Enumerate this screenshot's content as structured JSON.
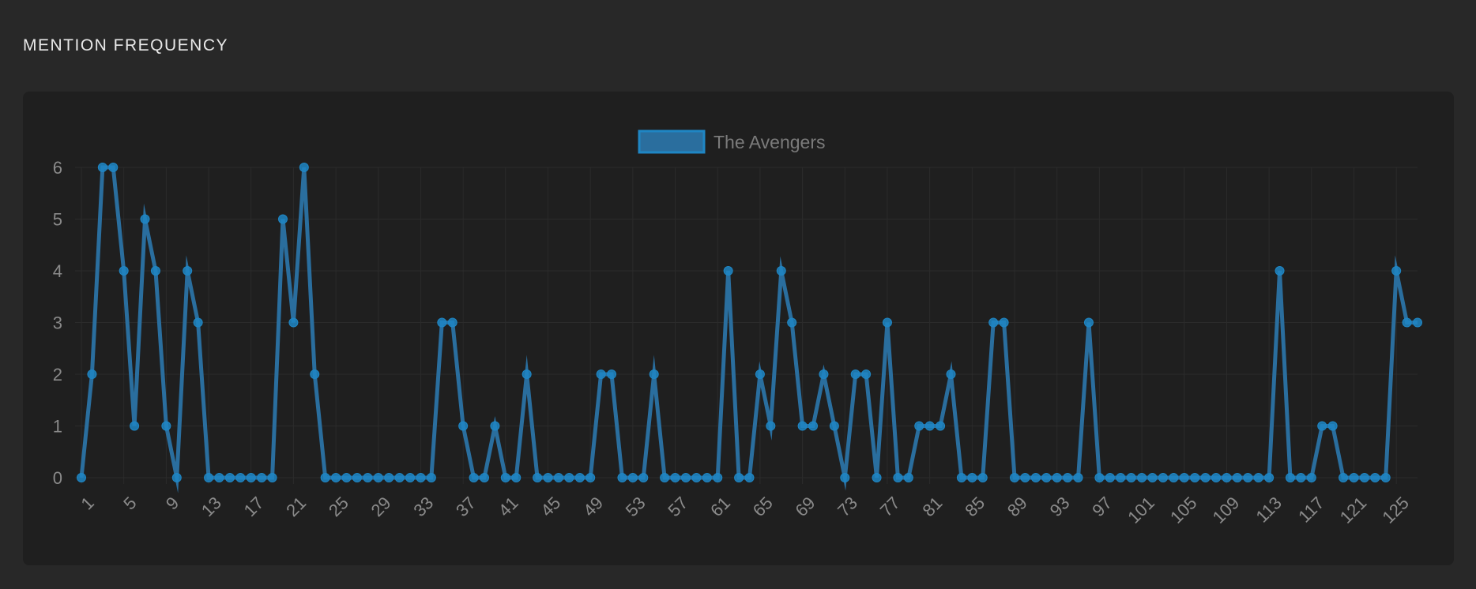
{
  "header": {
    "title": "MENTION FREQUENCY"
  },
  "colors": {
    "series": "#2a6e9e",
    "point": "#1f86c4",
    "grid": "#2b2b2b",
    "background": "#1f1f1f"
  },
  "chart_data": {
    "type": "line",
    "title": "",
    "xlabel": "",
    "ylabel": "",
    "ylim": [
      0,
      6
    ],
    "legend": "top-center",
    "grid": true,
    "x": [
      1,
      2,
      3,
      4,
      5,
      6,
      7,
      8,
      9,
      10,
      11,
      12,
      13,
      14,
      15,
      16,
      17,
      18,
      19,
      20,
      21,
      22,
      23,
      24,
      25,
      26,
      27,
      28,
      29,
      30,
      31,
      32,
      33,
      34,
      35,
      36,
      37,
      38,
      39,
      40,
      41,
      42,
      43,
      44,
      45,
      46,
      47,
      48,
      49,
      50,
      51,
      52,
      53,
      54,
      55,
      56,
      57,
      58,
      59,
      60,
      61,
      62,
      63,
      64,
      65,
      66,
      67,
      68,
      69,
      70,
      71,
      72,
      73,
      74,
      75,
      76,
      77,
      78,
      79,
      80,
      81,
      82,
      83,
      84,
      85,
      86,
      87,
      88,
      89,
      90,
      91,
      92,
      93,
      94,
      95,
      96,
      97,
      98,
      99,
      100,
      101,
      102,
      103,
      104,
      105,
      106,
      107,
      108,
      109,
      110,
      111,
      112,
      113,
      114,
      115,
      116,
      117,
      118,
      119,
      120,
      121,
      122,
      123,
      124,
      125,
      126,
      127
    ],
    "x_tick_labels": [
      "1",
      "5",
      "9",
      "13",
      "17",
      "21",
      "25",
      "29",
      "33",
      "37",
      "41",
      "45",
      "49",
      "53",
      "57",
      "61",
      "65",
      "69",
      "73",
      "77",
      "81",
      "85",
      "89",
      "93",
      "97",
      "101",
      "105",
      "109",
      "113",
      "117",
      "121",
      "125"
    ],
    "y_tick_labels": [
      "0",
      "1",
      "2",
      "3",
      "4",
      "5",
      "6"
    ],
    "series": [
      {
        "name": "The Avengers",
        "values": [
          0,
          2,
          6,
          6,
          4,
          1,
          5,
          4,
          1,
          0,
          4,
          3,
          0,
          0,
          0,
          0,
          0,
          0,
          0,
          5,
          3,
          6,
          2,
          0,
          0,
          0,
          0,
          0,
          0,
          0,
          0,
          0,
          0,
          0,
          3,
          3,
          1,
          0,
          0,
          1,
          0,
          0,
          2,
          0,
          0,
          0,
          0,
          0,
          0,
          2,
          2,
          0,
          0,
          0,
          2,
          0,
          0,
          0,
          0,
          0,
          0,
          4,
          0,
          0,
          2,
          1,
          4,
          3,
          1,
          1,
          2,
          1,
          0,
          2,
          2,
          0,
          3,
          0,
          0,
          1,
          1,
          1,
          2,
          0,
          0,
          0,
          3,
          3,
          0,
          0,
          0,
          0,
          0,
          0,
          0,
          3,
          0,
          0,
          0,
          0,
          0,
          0,
          0,
          0,
          0,
          0,
          0,
          0,
          0,
          0,
          0,
          0,
          0,
          4,
          0,
          0,
          0,
          1,
          1,
          0,
          0,
          0,
          0,
          0,
          4,
          3,
          3
        ]
      }
    ]
  }
}
